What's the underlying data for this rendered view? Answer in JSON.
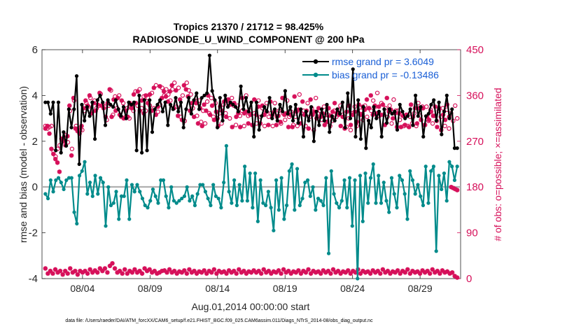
{
  "chart_data": {
    "type": "line",
    "title_line1": "Tropics 21370 / 21712 = 98.425%",
    "title_line2": "RADIOSONDE_U_WIND_COMPONENT @ 200 hPa",
    "xlabel": "Aug.01,2014 00:00:00 start",
    "ylabel_left": "rmse and bias (model - observation)",
    "ylabel_right": "# of obs: o=possible; ×=assimilated",
    "footer": "data file: /Users/raeder/DAI/ATM_forcXX/CAM6_setup/f.e21.FHIST_BGC.f09_025.CAM6assim.011/Diags_NTrS_2014-08/obs_diag_output.nc",
    "x_range_days": [
      1.0,
      32.0
    ],
    "x_ticks": [
      {
        "day": 4,
        "label": "08/04"
      },
      {
        "day": 9,
        "label": "08/09"
      },
      {
        "day": 14,
        "label": "08/14"
      },
      {
        "day": 19,
        "label": "08/19"
      },
      {
        "day": 24,
        "label": "08/24"
      },
      {
        "day": 29,
        "label": "08/29"
      }
    ],
    "ylim_left": [
      -4,
      6
    ],
    "yticks_left": [
      "-4",
      "-2",
      "0",
      "2",
      "4",
      "6"
    ],
    "ylim_right": [
      0,
      450
    ],
    "yticks_right": [
      "0",
      "90",
      "180",
      "270",
      "360",
      "450"
    ],
    "x_start_day": 1.25,
    "x_step_days": 0.25,
    "series": [
      {
        "name": "rmse grand pr = 3.6049",
        "color": "#000000",
        "marker": "filled-circle",
        "values": [
          3.7,
          3.7,
          3.2,
          3.7,
          1.6,
          3.7,
          1.5,
          2.4,
          1.8,
          3.4,
          2.6,
          3.4,
          4.85,
          1.0,
          3.6,
          2.9,
          3.5,
          3.1,
          3.7,
          2.1,
          3.8,
          4.0,
          3.7,
          2.7,
          3.8,
          3.6,
          3.5,
          3.8,
          3.4,
          3.1,
          3.5,
          3.0,
          3.7,
          3.6,
          3.7,
          1.6,
          4.0,
          1.5,
          3.8,
          1.6,
          3.8,
          2.4,
          3.4,
          3.6,
          3.8,
          3.3,
          3.7,
          2.7,
          3.6,
          3.4,
          3.9,
          3.3,
          3.7,
          2.6,
          3.4,
          3.9,
          3.2,
          3.8,
          4.1,
          3.4,
          3.9,
          4.0,
          4.1,
          5.75,
          4.2,
          3.8,
          2.6,
          3.9,
          2.9,
          4.0,
          3.5,
          3.7,
          3.6,
          3.5,
          3.3,
          4.4,
          3.4,
          3.9,
          3.3,
          3.7,
          2.2,
          3.7,
          2.5,
          3.1,
          3.5,
          3.3,
          3.9,
          3.0,
          3.4,
          2.9,
          3.6,
          3.3,
          4.2,
          3.2,
          3.5,
          2.9,
          3.6,
          2.8,
          3.4,
          2.2,
          3.3,
          2.9,
          3.5,
          2.0,
          3.3,
          2.7,
          3.4,
          2.9,
          3.6,
          2.4,
          3.1,
          2.9,
          3.4,
          3.2,
          3.7,
          2.6,
          4.1,
          3.0,
          5.15,
          2.2,
          3.8,
          2.1,
          3.5,
          1.7,
          2.9,
          2.6,
          3.5,
          3.0,
          3.3,
          2.2,
          3.4,
          2.8,
          3.4,
          3.2,
          3.3,
          2.5,
          3.6,
          3.3,
          3.0,
          3.1,
          3.4,
          2.7,
          4.0,
          3.1,
          3.5,
          2.2,
          3.1,
          3.2,
          3.6,
          3.8,
          2.9,
          3.7,
          2.3,
          3.3,
          4.0,
          3.0,
          3.4,
          1.7,
          1.7
        ]
      },
      {
        "name": "bias grand pr = -0.13486",
        "color": "#008b8b",
        "marker": "filled-circle",
        "values": [
          -0.3,
          -0.5,
          0.3,
          -0.2,
          0.3,
          0.4,
          0.2,
          -0.1,
          0.3,
          0.4,
          0.4,
          -1.1,
          -1.6,
          0.5,
          0.7,
          1.1,
          -0.3,
          0.2,
          -0.4,
          0.5,
          -0.3,
          0.4,
          0.2,
          -1.7,
          0.0,
          -0.8,
          -0.7,
          -0.2,
          -1.4,
          -0.4,
          -0.4,
          0.3,
          -1.4,
          0.1,
          -0.2,
          0.1,
          -0.2,
          -0.5,
          -0.8,
          -0.9,
          -0.6,
          -0.1,
          -0.4,
          -0.7,
          0.3,
          0.3,
          -0.4,
          -0.9,
          0.0,
          -0.6,
          -0.7,
          -0.6,
          -0.5,
          -0.4,
          0.0,
          -0.6,
          -0.4,
          -0.8,
          -0.3,
          0.1,
          0.1,
          -0.2,
          -0.5,
          -0.8,
          0.1,
          -0.4,
          -0.5,
          -0.9,
          0.2,
          1.8,
          -0.2,
          -0.7,
          0.3,
          -0.8,
          0.1,
          -0.6,
          0.9,
          -0.6,
          0.6,
          -0.9,
          0.6,
          -1.5,
          0.3,
          -0.7,
          -0.8,
          -0.2,
          -0.9,
          -1.9,
          0.3,
          -1.0,
          0.4,
          -1.4,
          -0.8,
          0.7,
          1.0,
          -1.0,
          0.8,
          -0.8,
          -0.5,
          0.2,
          0.3,
          -0.4,
          0.0,
          -1.0,
          -0.5,
          -0.6,
          -0.8,
          0.4,
          -2.9,
          0.7,
          -0.3,
          -0.7,
          -0.9,
          -0.6,
          0.3,
          -0.9,
          0.4,
          -1.7,
          0.3,
          -4.0,
          0.5,
          -1.5,
          0.6,
          -0.7,
          0.4,
          1.0,
          -0.7,
          0.5,
          -0.7,
          0.2,
          -0.6,
          -1.1,
          0.4,
          -0.3,
          -0.9,
          0.5,
          0.3,
          -0.3,
          -1.4,
          0.7,
          0.3,
          -0.3,
          0.1,
          -0.4,
          -0.8,
          0.9,
          -0.7,
          0.7,
          0.9,
          -2.8,
          0.5,
          -0.1,
          0.6,
          -0.6,
          1.1,
          0.9,
          0.3,
          0.9
        ]
      },
      {
        "name": "# obs possible",
        "color": "#d6105a",
        "marker": "open-circle",
        "values": [
          300,
          295,
          298,
          300,
          250,
          240,
          255,
          262,
          275,
          272,
          282,
          268,
          330,
          255,
          350,
          300,
          295,
          292,
          292,
          330,
          345,
          338,
          355,
          328,
          350,
          335,
          340,
          363,
          342,
          338,
          312,
          340,
          370,
          322,
          358,
          335,
          360,
          318,
          345,
          317,
          335,
          315,
          340,
          330,
          368,
          340,
          372,
          335,
          358,
          330,
          355,
          340,
          365,
          335,
          380,
          328,
          342,
          375,
          360,
          372,
          362,
          350,
          372,
          385,
          338,
          375,
          318,
          360,
          310,
          385,
          370,
          362,
          335,
          350,
          320,
          350,
          308,
          330,
          305,
          348,
          325,
          355,
          318,
          345,
          315,
          325,
          305,
          342,
          325,
          350,
          315,
          355,
          340,
          302,
          340,
          320,
          330,
          300,
          360,
          320,
          330,
          302,
          325,
          305,
          350,
          318,
          335,
          300,
          345,
          318,
          325,
          300,
          345,
          318,
          330,
          305,
          325,
          312,
          350,
          318,
          328,
          302,
          318,
          300,
          362,
          325,
          330,
          300,
          345,
          318,
          335,
          292,
          355,
          325,
          330,
          312,
          338,
          315,
          322,
          300,
          310,
          330,
          318,
          332,
          340,
          322,
          318,
          298,
          315,
          292,
          325,
          338,
          300,
          325,
          330,
          312,
          340,
          318,
          335,
          330,
          350,
          338,
          365,
          320,
          345,
          322,
          335,
          318,
          340,
          305,
          352,
          330,
          330,
          312,
          322,
          300,
          322,
          300,
          318,
          305,
          325,
          300,
          345,
          320,
          338,
          302,
          338,
          310,
          332,
          305,
          320,
          310,
          330,
          318,
          335,
          300,
          332,
          295,
          325,
          310,
          340,
          315
        ]
      },
      {
        "name": "# obs assimilated",
        "color": "#d6105a",
        "marker": "asterisk",
        "values": [
          20,
          10,
          15,
          10,
          18,
          12,
          15,
          8,
          15,
          10,
          20,
          12,
          15,
          8,
          15,
          12,
          15,
          10,
          18,
          12,
          16,
          12,
          20,
          15,
          20,
          12,
          25,
          30,
          20,
          12,
          15,
          10,
          18,
          10,
          15,
          12,
          18,
          12,
          15,
          10,
          20,
          15,
          18,
          12,
          15,
          10,
          12,
          15,
          16,
          12,
          18,
          12,
          15,
          10,
          14,
          12,
          16,
          10,
          18,
          12,
          15,
          10,
          14,
          12,
          16,
          10,
          15,
          12,
          18,
          10,
          15,
          12,
          14,
          10,
          16,
          12,
          15,
          10,
          18,
          12,
          15,
          10,
          14,
          12,
          16,
          12,
          15,
          10,
          18,
          12,
          15,
          10,
          14,
          12,
          16,
          10,
          18,
          12,
          15,
          10,
          14,
          12,
          16,
          10,
          15,
          12,
          18,
          10,
          15,
          12,
          14,
          10,
          16,
          12,
          15,
          10,
          18,
          12,
          15,
          10,
          14,
          12,
          16,
          10,
          15,
          12,
          18,
          10,
          15,
          12,
          14,
          10,
          16,
          12,
          15,
          10,
          18,
          12,
          15,
          10,
          14,
          12,
          16,
          10,
          15,
          12,
          18,
          10,
          15,
          12,
          14,
          10,
          16,
          12,
          15,
          10,
          18,
          12,
          15,
          10,
          16,
          12,
          14,
          10,
          12,
          5,
          2
        ]
      }
    ],
    "assim_scatter_values": [
      295,
      300,
      285,
      255,
      245,
      235,
      228,
      210,
      275,
      270,
      262,
      280,
      340,
      242,
      355,
      295,
      290,
      285,
      300,
      335,
      350,
      340,
      360,
      325,
      345,
      330,
      342,
      365,
      340,
      335,
      318,
      345,
      372,
      318,
      352,
      330,
      355,
      322,
      350,
      315,
      330,
      318,
      345,
      335,
      362,
      345,
      368,
      330,
      350,
      325,
      360,
      345,
      362,
      330,
      375,
      322,
      338,
      378,
      355,
      368,
      358,
      348,
      368,
      380,
      335,
      370,
      320,
      352,
      312,
      380,
      372,
      358,
      330,
      345,
      318,
      345,
      305,
      335,
      300,
      342,
      330,
      360,
      322,
      340,
      312,
      328,
      300,
      338,
      330,
      348,
      318,
      352,
      342,
      298,
      345,
      318,
      325,
      298,
      355,
      325,
      328,
      305,
      322,
      302,
      352,
      322,
      338,
      305,
      340,
      322,
      328,
      302,
      348,
      322,
      328,
      302,
      320,
      308,
      355,
      322,
      325,
      298,
      322,
      298,
      358,
      328,
      332,
      305,
      348,
      322,
      330,
      295,
      352,
      322,
      328,
      315,
      335,
      318,
      325,
      302,
      308,
      335,
      320,
      328,
      345,
      325,
      322,
      300,
      318,
      295,
      328,
      340,
      302,
      322,
      328,
      308,
      342,
      322,
      338,
      332,
      352,
      335,
      360,
      322,
      340,
      325,
      338,
      322,
      342,
      302,
      355,
      328,
      332,
      315,
      325,
      298,
      325,
      298,
      320,
      302,
      322,
      298,
      342,
      318,
      335,
      305,
      335,
      312,
      335,
      302,
      318,
      312,
      328,
      320,
      338,
      298,
      335,
      292,
      322,
      312,
      342,
      318,
      180,
      178,
      176,
      174
    ]
  }
}
